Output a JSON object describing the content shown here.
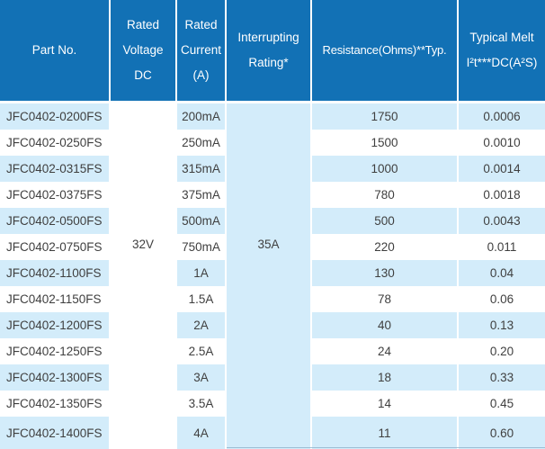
{
  "colors": {
    "header_bg": "#1271b5",
    "header_text": "#ffffff",
    "row_alt_bg": "#d3ecfa",
    "row_bg": "#ffffff",
    "body_text": "#3f3f3f",
    "separator": "#ffffff",
    "edge_line": "#8fb3cb"
  },
  "table": {
    "columns": [
      {
        "key": "part",
        "lines": [
          "Part No."
        ]
      },
      {
        "key": "voltage",
        "lines": [
          "Rated",
          "Voltage",
          "DC"
        ]
      },
      {
        "key": "current",
        "lines": [
          "Rated",
          "Current",
          "(A)"
        ]
      },
      {
        "key": "interrupting",
        "lines": [
          "Interrupting",
          "Rating*"
        ]
      },
      {
        "key": "resistance",
        "lines": [
          "Resistance(Ohms)**Typ."
        ]
      },
      {
        "key": "melt",
        "lines": [
          "Typical Melt",
          "I²t***DC(A²S)"
        ]
      }
    ],
    "merged": {
      "voltage": "32V",
      "interrupting": "35A"
    },
    "rows": [
      {
        "part": "JFC0402-0200FS",
        "current": "200mA",
        "resistance": "1750",
        "melt": "0.0006"
      },
      {
        "part": "JFC0402-0250FS",
        "current": "250mA",
        "resistance": "1500",
        "melt": "0.0010"
      },
      {
        "part": "JFC0402-0315FS",
        "current": "315mA",
        "resistance": "1000",
        "melt": "0.0014"
      },
      {
        "part": "JFC0402-0375FS",
        "current": "375mA",
        "resistance": "780",
        "melt": "0.0018"
      },
      {
        "part": "JFC0402-0500FS",
        "current": "500mA",
        "resistance": "500",
        "melt": "0.0043"
      },
      {
        "part": "JFC0402-0750FS",
        "current": "750mA",
        "resistance": "220",
        "melt": "0.011"
      },
      {
        "part": "JFC0402-1100FS",
        "current": "1A",
        "resistance": "130",
        "melt": "0.04"
      },
      {
        "part": "JFC0402-1150FS",
        "current": "1.5A",
        "resistance": "78",
        "melt": "0.06"
      },
      {
        "part": "JFC0402-1200FS",
        "current": "2A",
        "resistance": "40",
        "melt": "0.13"
      },
      {
        "part": "JFC0402-1250FS",
        "current": "2.5A",
        "resistance": "24",
        "melt": "0.20"
      },
      {
        "part": "JFC0402-1300FS",
        "current": "3A",
        "resistance": "18",
        "melt": "0.33"
      },
      {
        "part": "JFC0402-1350FS",
        "current": "3.5A",
        "resistance": "14",
        "melt": "0.45"
      },
      {
        "part": "JFC0402-1400FS",
        "current": "4A",
        "resistance": "11",
        "melt": "0.60"
      }
    ]
  }
}
